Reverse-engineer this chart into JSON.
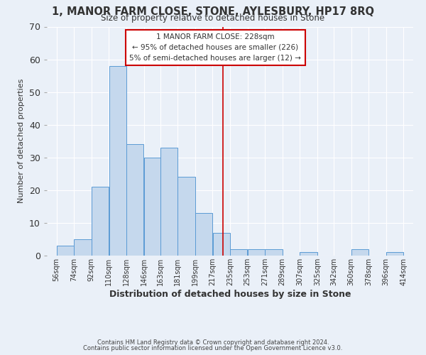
{
  "title": "1, MANOR FARM CLOSE, STONE, AYLESBURY, HP17 8RQ",
  "subtitle": "Size of property relative to detached houses in Stone",
  "xlabel": "Distribution of detached houses by size in Stone",
  "ylabel": "Number of detached properties",
  "bar_left_edges": [
    56,
    74,
    92,
    110,
    128,
    146,
    163,
    181,
    199,
    217,
    235,
    253,
    271,
    289,
    307,
    325,
    342,
    360,
    378,
    396
  ],
  "bar_widths": [
    18,
    18,
    18,
    18,
    18,
    17,
    18,
    18,
    18,
    18,
    18,
    18,
    18,
    18,
    18,
    17,
    18,
    18,
    18,
    18
  ],
  "bar_heights": [
    3,
    5,
    21,
    58,
    34,
    30,
    33,
    24,
    13,
    7,
    2,
    2,
    2,
    0,
    1,
    0,
    0,
    2,
    0,
    1
  ],
  "tick_labels": [
    "56sqm",
    "74sqm",
    "92sqm",
    "110sqm",
    "128sqm",
    "146sqm",
    "163sqm",
    "181sqm",
    "199sqm",
    "217sqm",
    "235sqm",
    "253sqm",
    "271sqm",
    "289sqm",
    "307sqm",
    "325sqm",
    "342sqm",
    "360sqm",
    "378sqm",
    "396sqm",
    "414sqm"
  ],
  "tick_positions": [
    56,
    74,
    92,
    110,
    128,
    146,
    163,
    181,
    199,
    217,
    235,
    253,
    271,
    289,
    307,
    325,
    342,
    360,
    378,
    396,
    414
  ],
  "bar_color": "#c5d8ed",
  "bar_edge_color": "#5b9bd5",
  "vline_x": 228,
  "vline_color": "#cc0000",
  "ylim": [
    0,
    70
  ],
  "yticks": [
    0,
    10,
    20,
    30,
    40,
    50,
    60,
    70
  ],
  "annotation_title": "1 MANOR FARM CLOSE: 228sqm",
  "annotation_line1": "← 95% of detached houses are smaller (226)",
  "annotation_line2": "5% of semi-detached houses are larger (12) →",
  "annotation_box_color": "#cc0000",
  "footer1": "Contains HM Land Registry data © Crown copyright and database right 2024.",
  "footer2": "Contains public sector information licensed under the Open Government Licence v3.0.",
  "background_color": "#eaf0f8",
  "grid_color": "#ffffff",
  "title_fontsize": 10.5,
  "subtitle_fontsize": 8.5,
  "xlabel_fontsize": 9,
  "ylabel_fontsize": 8,
  "tick_fontsize": 7,
  "footer_fontsize": 6,
  "annotation_fontsize": 7.5
}
